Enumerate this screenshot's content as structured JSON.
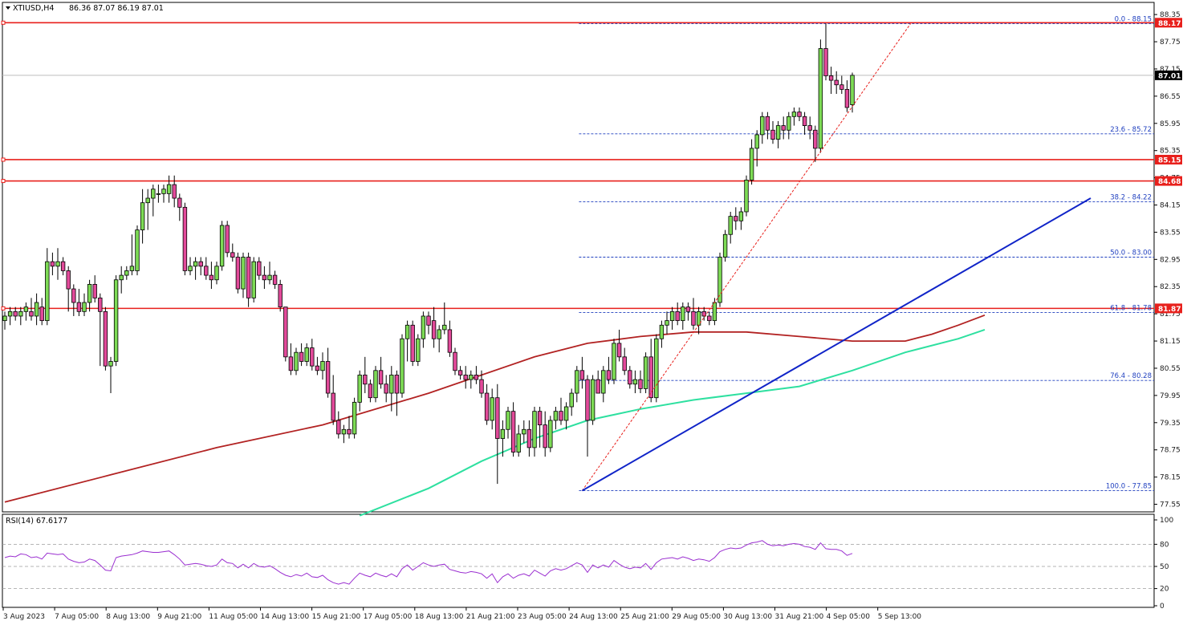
{
  "header": {
    "symbol_label": "XTIUSD,H4",
    "ohlc_label": "86.36 87.07 86.19 87.01"
  },
  "rsi_header": {
    "label": "RSI(14) 67.6177"
  },
  "colors": {
    "bull_fill": "#7ddb55",
    "bear_fill": "#e24a9a",
    "wick": "#000000",
    "support_resistance": "#e8201c",
    "fib_line": "#1f3fbf",
    "fib_diagonal": "#e8201c",
    "trendline": "#1024c8",
    "ma_slow": "#b22222",
    "ma_fast": "#2ee0a0",
    "rsi_line": "#9a2ed0",
    "current_price_line": "#bdbdbd",
    "badge_red": "#e8201c",
    "badge_black": "#000000"
  },
  "price_axis_ticks": [
    "88.35",
    "87.75",
    "87.15",
    "86.55",
    "85.95",
    "85.35",
    "84.75",
    "84.15",
    "83.55",
    "82.95",
    "82.35",
    "81.75",
    "81.15",
    "80.55",
    "79.95",
    "79.35",
    "78.75",
    "78.15",
    "77.55"
  ],
  "rsi_axis_ticks": [
    "100",
    "80",
    "50",
    "20",
    "0"
  ],
  "time_axis_labels": [
    "3 Aug 2023",
    "7 Aug 05:00",
    "8 Aug 13:00",
    "9 Aug 21:00",
    "11 Aug 05:00",
    "14 Aug 13:00",
    "15 Aug 21:00",
    "17 Aug 05:00",
    "18 Aug 13:00",
    "21 Aug 21:00",
    "23 Aug 05:00",
    "24 Aug 13:00",
    "25 Aug 21:00",
    "29 Aug 05:00",
    "30 Aug 13:00",
    "31 Aug 21:00",
    "4 Sep 05:00",
    "5 Sep 13:00"
  ],
  "price_badges": [
    {
      "label": "88.17",
      "price": 88.17,
      "style": "red"
    },
    {
      "label": "87.01",
      "price": 87.01,
      "style": "black"
    },
    {
      "label": "85.15",
      "price": 85.15,
      "style": "red"
    },
    {
      "label": "84.68",
      "price": 84.68,
      "style": "red"
    },
    {
      "label": "81.87",
      "price": 81.87,
      "style": "red"
    }
  ],
  "fib_levels": [
    {
      "label": "0.0 - 88.15",
      "price": 88.15
    },
    {
      "label": "23.6 - 85.72",
      "price": 85.72
    },
    {
      "label": "38.2 - 84.22",
      "price": 84.22
    },
    {
      "label": "50.0 - 83.00",
      "price": 83.0
    },
    {
      "label": "61.8 - 81.78",
      "price": 81.78
    },
    {
      "label": "76.4 - 80.28",
      "price": 80.28
    },
    {
      "label": "100.0 - 77.85",
      "price": 77.85
    }
  ],
  "chart_data": {
    "type": "candlestick",
    "symbol": "XTIUSD",
    "timeframe": "H4",
    "ylim": [
      77.4,
      88.6
    ],
    "rsi_ylim": [
      0,
      100
    ],
    "candles": [
      [
        81.6,
        81.8,
        81.4,
        81.7
      ],
      [
        81.7,
        81.9,
        81.5,
        81.8
      ],
      [
        81.8,
        81.9,
        81.6,
        81.7
      ],
      [
        81.7,
        81.9,
        81.5,
        81.8
      ],
      [
        81.8,
        82.0,
        81.6,
        81.9
      ],
      [
        81.8,
        82.1,
        81.6,
        81.7
      ],
      [
        81.7,
        82.2,
        81.5,
        82.0
      ],
      [
        81.9,
        82.1,
        81.5,
        81.6
      ],
      [
        81.6,
        83.2,
        81.5,
        82.9
      ],
      [
        82.9,
        83.1,
        82.6,
        82.8
      ],
      [
        82.8,
        83.2,
        82.5,
        82.9
      ],
      [
        82.9,
        83.0,
        82.6,
        82.7
      ],
      [
        82.7,
        82.8,
        81.8,
        82.3
      ],
      [
        82.3,
        82.4,
        81.7,
        82.0
      ],
      [
        82.0,
        82.3,
        81.7,
        81.8
      ],
      [
        81.8,
        82.2,
        81.7,
        82.0
      ],
      [
        82.0,
        82.5,
        81.8,
        82.4
      ],
      [
        82.4,
        82.6,
        82.0,
        82.1
      ],
      [
        82.1,
        82.2,
        80.6,
        81.8
      ],
      [
        81.8,
        81.9,
        80.5,
        80.6
      ],
      [
        80.6,
        80.8,
        80.0,
        80.7
      ],
      [
        80.7,
        82.6,
        80.6,
        82.5
      ],
      [
        82.5,
        82.8,
        82.2,
        82.6
      ],
      [
        82.6,
        82.8,
        82.5,
        82.7
      ],
      [
        82.7,
        83.5,
        82.6,
        82.8
      ],
      [
        82.7,
        83.7,
        82.6,
        83.6
      ],
      [
        83.6,
        84.5,
        83.3,
        84.2
      ],
      [
        84.2,
        84.5,
        83.6,
        84.3
      ],
      [
        84.3,
        84.6,
        83.9,
        84.5
      ],
      [
        84.4,
        84.6,
        84.2,
        84.4
      ],
      [
        84.4,
        84.6,
        84.2,
        84.5
      ],
      [
        84.4,
        84.8,
        84.2,
        84.6
      ],
      [
        84.6,
        84.8,
        84.1,
        84.3
      ],
      [
        84.3,
        84.4,
        83.8,
        84.1
      ],
      [
        84.1,
        84.2,
        82.6,
        82.7
      ],
      [
        82.7,
        83.0,
        82.6,
        82.8
      ],
      [
        82.8,
        83.0,
        82.5,
        82.9
      ],
      [
        82.9,
        83.0,
        82.6,
        82.8
      ],
      [
        82.8,
        83.0,
        82.5,
        82.6
      ],
      [
        82.6,
        82.9,
        82.3,
        82.5
      ],
      [
        82.5,
        82.9,
        82.4,
        82.8
      ],
      [
        82.8,
        83.8,
        82.7,
        83.7
      ],
      [
        83.7,
        83.8,
        83.0,
        83.1
      ],
      [
        83.1,
        83.3,
        82.9,
        83.0
      ],
      [
        83.0,
        83.1,
        82.2,
        82.3
      ],
      [
        82.3,
        83.1,
        82.1,
        83.0
      ],
      [
        83.0,
        83.1,
        81.9,
        82.1
      ],
      [
        82.1,
        83.0,
        82.0,
        82.9
      ],
      [
        82.9,
        83.0,
        82.5,
        82.6
      ],
      [
        82.6,
        82.8,
        82.3,
        82.5
      ],
      [
        82.5,
        82.9,
        82.4,
        82.6
      ],
      [
        82.6,
        82.7,
        82.3,
        82.4
      ],
      [
        82.4,
        82.5,
        81.8,
        81.9
      ],
      [
        81.9,
        81.9,
        80.7,
        80.8
      ],
      [
        80.8,
        81.1,
        80.4,
        80.5
      ],
      [
        80.5,
        81.0,
        80.4,
        80.9
      ],
      [
        80.9,
        81.1,
        80.6,
        80.7
      ],
      [
        80.7,
        81.1,
        80.6,
        81.0
      ],
      [
        81.0,
        81.2,
        80.5,
        80.6
      ],
      [
        80.6,
        80.8,
        80.4,
        80.5
      ],
      [
        80.5,
        80.9,
        80.3,
        80.7
      ],
      [
        80.7,
        81.0,
        79.9,
        80.0
      ],
      [
        80.0,
        80.4,
        79.3,
        79.4
      ],
      [
        79.4,
        79.6,
        79.0,
        79.1
      ],
      [
        79.1,
        79.3,
        78.9,
        79.2
      ],
      [
        79.2,
        79.5,
        79.0,
        79.1
      ],
      [
        79.1,
        79.9,
        79.0,
        79.8
      ],
      [
        79.8,
        80.5,
        79.6,
        80.4
      ],
      [
        80.4,
        80.8,
        80.0,
        80.2
      ],
      [
        80.2,
        80.3,
        79.8,
        79.9
      ],
      [
        79.9,
        80.6,
        79.8,
        80.5
      ],
      [
        80.5,
        80.8,
        80.1,
        80.2
      ],
      [
        80.2,
        80.4,
        79.8,
        80.0
      ],
      [
        80.0,
        80.6,
        79.6,
        80.4
      ],
      [
        80.4,
        80.5,
        79.5,
        80.0
      ],
      [
        80.0,
        81.3,
        79.9,
        81.2
      ],
      [
        81.2,
        81.6,
        80.7,
        81.5
      ],
      [
        81.5,
        81.6,
        80.6,
        80.7
      ],
      [
        80.7,
        81.3,
        80.6,
        81.2
      ],
      [
        81.2,
        81.8,
        81.0,
        81.7
      ],
      [
        81.7,
        81.8,
        81.3,
        81.5
      ],
      [
        81.6,
        81.9,
        81.0,
        81.2
      ],
      [
        81.2,
        81.5,
        80.9,
        81.4
      ],
      [
        81.4,
        82.0,
        81.3,
        81.5
      ],
      [
        81.4,
        81.6,
        80.8,
        80.9
      ],
      [
        80.9,
        81.0,
        80.4,
        80.5
      ],
      [
        80.5,
        80.6,
        80.3,
        80.4
      ],
      [
        80.4,
        80.6,
        80.1,
        80.3
      ],
      [
        80.3,
        80.5,
        80.1,
        80.4
      ],
      [
        80.4,
        80.6,
        80.2,
        80.3
      ],
      [
        80.3,
        80.5,
        79.9,
        80.0
      ],
      [
        80.0,
        80.2,
        79.3,
        79.4
      ],
      [
        79.4,
        80.1,
        79.2,
        79.9
      ],
      [
        79.9,
        80.2,
        78.0,
        79.0
      ],
      [
        79.0,
        79.4,
        78.6,
        79.2
      ],
      [
        79.2,
        79.7,
        79.0,
        79.6
      ],
      [
        79.6,
        79.8,
        78.6,
        78.7
      ],
      [
        78.7,
        79.3,
        78.6,
        79.1
      ],
      [
        79.1,
        79.4,
        78.9,
        79.2
      ],
      [
        79.2,
        79.4,
        78.6,
        78.8
      ],
      [
        78.8,
        79.7,
        78.6,
        79.6
      ],
      [
        79.6,
        79.7,
        78.8,
        79.3
      ],
      [
        79.3,
        79.6,
        78.6,
        78.8
      ],
      [
        78.8,
        79.5,
        78.7,
        79.4
      ],
      [
        79.4,
        79.7,
        79.2,
        79.6
      ],
      [
        79.6,
        79.9,
        79.3,
        79.4
      ],
      [
        79.4,
        79.8,
        79.2,
        79.7
      ],
      [
        79.7,
        80.1,
        79.5,
        80.0
      ],
      [
        80.0,
        80.6,
        79.8,
        80.5
      ],
      [
        80.5,
        80.8,
        80.1,
        80.3
      ],
      [
        80.3,
        80.4,
        78.6,
        79.4
      ],
      [
        79.4,
        80.4,
        79.3,
        80.3
      ],
      [
        80.3,
        80.5,
        80.0,
        80.0
      ],
      [
        80.0,
        80.6,
        79.8,
        80.5
      ],
      [
        80.5,
        80.8,
        80.2,
        80.3
      ],
      [
        80.3,
        81.2,
        80.2,
        81.1
      ],
      [
        81.1,
        81.4,
        80.7,
        80.8
      ],
      [
        80.8,
        81.0,
        80.4,
        80.5
      ],
      [
        80.5,
        80.6,
        80.1,
        80.2
      ],
      [
        80.2,
        80.5,
        80.0,
        80.3
      ],
      [
        80.3,
        80.5,
        80.0,
        80.1
      ],
      [
        80.1,
        80.9,
        80.0,
        80.8
      ],
      [
        80.8,
        81.2,
        79.8,
        79.9
      ],
      [
        79.9,
        81.3,
        79.8,
        81.2
      ],
      [
        81.2,
        81.6,
        81.0,
        81.5
      ],
      [
        81.5,
        81.8,
        81.3,
        81.6
      ],
      [
        81.6,
        81.9,
        81.4,
        81.8
      ],
      [
        81.8,
        82.0,
        81.5,
        81.6
      ],
      [
        81.6,
        82.0,
        81.4,
        81.9
      ],
      [
        81.9,
        82.0,
        81.6,
        81.8
      ],
      [
        81.8,
        82.1,
        81.4,
        81.5
      ],
      [
        81.5,
        81.9,
        81.3,
        81.8
      ],
      [
        81.8,
        81.9,
        81.6,
        81.7
      ],
      [
        81.7,
        81.8,
        81.5,
        81.6
      ],
      [
        81.6,
        82.1,
        81.5,
        82.0
      ],
      [
        82.0,
        83.1,
        81.9,
        83.0
      ],
      [
        83.0,
        83.6,
        82.9,
        83.5
      ],
      [
        83.5,
        84.0,
        83.3,
        83.9
      ],
      [
        83.9,
        84.1,
        83.6,
        83.8
      ],
      [
        83.8,
        84.1,
        83.6,
        84.0
      ],
      [
        84.0,
        84.8,
        83.9,
        84.7
      ],
      [
        84.7,
        85.6,
        84.6,
        85.4
      ],
      [
        85.4,
        85.8,
        85.0,
        85.7
      ],
      [
        85.7,
        86.2,
        85.5,
        86.1
      ],
      [
        86.1,
        86.2,
        85.6,
        85.8
      ],
      [
        85.8,
        86.0,
        85.5,
        85.6
      ],
      [
        85.6,
        86.0,
        85.4,
        85.9
      ],
      [
        85.9,
        86.1,
        85.6,
        85.8
      ],
      [
        85.8,
        86.2,
        85.6,
        86.1
      ],
      [
        86.1,
        86.3,
        85.9,
        86.2
      ],
      [
        86.2,
        86.3,
        86.0,
        86.1
      ],
      [
        86.1,
        86.2,
        85.7,
        85.9
      ],
      [
        85.9,
        86.1,
        85.6,
        85.8
      ],
      [
        85.8,
        85.9,
        85.1,
        85.4
      ],
      [
        85.4,
        87.8,
        85.3,
        87.6
      ],
      [
        87.6,
        88.15,
        86.9,
        87.0
      ],
      [
        87.0,
        87.2,
        86.6,
        86.9
      ],
      [
        86.9,
        87.1,
        86.6,
        86.8
      ],
      [
        86.8,
        87.0,
        86.6,
        86.7
      ],
      [
        86.7,
        86.9,
        86.2,
        86.3
      ],
      [
        86.36,
        87.07,
        86.19,
        87.01
      ]
    ],
    "rsi_values": [
      62,
      64,
      63,
      67,
      66,
      62,
      63,
      60,
      68,
      67,
      66,
      67,
      60,
      57,
      55,
      56,
      60,
      58,
      52,
      45,
      44,
      62,
      64,
      65,
      66,
      68,
      71,
      70,
      69,
      69,
      70,
      71,
      66,
      60,
      52,
      53,
      54,
      53,
      51,
      50,
      52,
      60,
      55,
      54,
      48,
      53,
      48,
      54,
      50,
      49,
      51,
      47,
      42,
      38,
      36,
      39,
      37,
      41,
      36,
      35,
      38,
      32,
      28,
      26,
      28,
      26,
      34,
      41,
      38,
      36,
      41,
      38,
      36,
      40,
      36,
      47,
      52,
      45,
      50,
      55,
      52,
      50,
      52,
      53,
      46,
      44,
      42,
      41,
      43,
      42,
      40,
      34,
      40,
      28,
      36,
      40,
      34,
      38,
      40,
      37,
      45,
      41,
      37,
      44,
      47,
      45,
      47,
      51,
      55,
      52,
      42,
      52,
      48,
      52,
      49,
      58,
      53,
      49,
      47,
      49,
      48,
      54,
      46,
      55,
      60,
      61,
      62,
      60,
      63,
      61,
      58,
      60,
      59,
      57,
      62,
      70,
      73,
      75,
      74,
      75,
      79,
      82,
      83,
      85,
      80,
      78,
      79,
      78,
      80,
      81,
      80,
      77,
      76,
      73,
      82,
      74,
      73,
      73,
      71,
      65,
      67.6
    ],
    "ma_slow": [
      [
        0,
        77.6
      ],
      [
        20,
        78.2
      ],
      [
        40,
        78.8
      ],
      [
        60,
        79.3
      ],
      [
        80,
        80.0
      ],
      [
        100,
        80.8
      ],
      [
        110,
        81.1
      ],
      [
        120,
        81.25
      ],
      [
        130,
        81.35
      ],
      [
        140,
        81.35
      ],
      [
        150,
        81.25
      ],
      [
        160,
        81.15
      ],
      [
        170,
        81.15
      ],
      [
        175,
        81.3
      ],
      [
        180,
        81.5
      ],
      [
        185,
        81.72
      ]
    ],
    "ma_fast": [
      [
        67,
        77.3
      ],
      [
        80,
        77.9
      ],
      [
        90,
        78.5
      ],
      [
        100,
        79.0
      ],
      [
        110,
        79.4
      ],
      [
        120,
        79.65
      ],
      [
        130,
        79.85
      ],
      [
        140,
        80.0
      ],
      [
        150,
        80.15
      ],
      [
        160,
        80.5
      ],
      [
        170,
        80.9
      ],
      [
        180,
        81.2
      ],
      [
        185,
        81.4
      ]
    ],
    "trendline": [
      [
        109,
        77.85
      ],
      [
        205,
        84.3
      ]
    ],
    "fib_diagonal": [
      [
        109,
        77.85
      ],
      [
        171,
        88.15
      ]
    ]
  }
}
